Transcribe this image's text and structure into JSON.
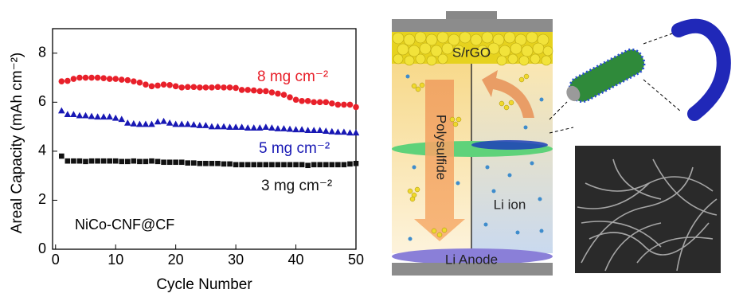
{
  "chart_data": {
    "type": "scatter",
    "x_label": "Cycle Number",
    "y_label": "Areal Capacity (mAh cm⁻²)",
    "annotation": "NiCo-CNF@CF",
    "x": [
      1,
      2,
      3,
      4,
      5,
      6,
      7,
      8,
      9,
      10,
      11,
      12,
      13,
      14,
      15,
      16,
      17,
      18,
      19,
      20,
      21,
      22,
      23,
      24,
      25,
      26,
      27,
      28,
      29,
      30,
      31,
      32,
      33,
      34,
      35,
      36,
      37,
      38,
      39,
      40,
      41,
      42,
      43,
      44,
      45,
      46,
      47,
      48,
      49,
      50
    ],
    "series": [
      {
        "name": "8 mg cm⁻²",
        "color": "#e8202a",
        "marker": "circle",
        "values": [
          6.85,
          6.87,
          6.95,
          7.0,
          7.0,
          7.0,
          7.0,
          6.98,
          6.95,
          6.95,
          6.92,
          6.9,
          6.85,
          6.8,
          6.72,
          6.65,
          6.68,
          6.72,
          6.7,
          6.65,
          6.6,
          6.62,
          6.62,
          6.6,
          6.6,
          6.6,
          6.62,
          6.6,
          6.6,
          6.58,
          6.5,
          6.5,
          6.48,
          6.45,
          6.45,
          6.4,
          6.35,
          6.3,
          6.2,
          6.1,
          6.05,
          6.05,
          6.0,
          6.0,
          6.0,
          5.95,
          5.9,
          5.9,
          5.9,
          5.8
        ]
      },
      {
        "name": "5 mg cm⁻²",
        "color": "#1818b4",
        "marker": "triangle",
        "values": [
          5.65,
          5.5,
          5.5,
          5.45,
          5.45,
          5.42,
          5.4,
          5.4,
          5.4,
          5.35,
          5.3,
          5.15,
          5.12,
          5.1,
          5.1,
          5.1,
          5.2,
          5.22,
          5.15,
          5.1,
          5.1,
          5.1,
          5.08,
          5.05,
          5.05,
          5.0,
          5.0,
          5.0,
          4.98,
          4.98,
          4.98,
          4.95,
          4.95,
          4.95,
          4.98,
          4.95,
          4.92,
          4.92,
          4.9,
          4.88,
          4.88,
          4.85,
          4.85,
          4.85,
          4.82,
          4.8,
          4.78,
          4.78,
          4.75,
          4.75
        ]
      },
      {
        "name": "3 mg cm⁻²",
        "color": "#111111",
        "marker": "square",
        "values": [
          3.8,
          3.6,
          3.6,
          3.6,
          3.58,
          3.6,
          3.6,
          3.6,
          3.6,
          3.6,
          3.58,
          3.58,
          3.6,
          3.58,
          3.58,
          3.6,
          3.58,
          3.55,
          3.55,
          3.55,
          3.55,
          3.52,
          3.52,
          3.5,
          3.5,
          3.5,
          3.5,
          3.48,
          3.48,
          3.45,
          3.45,
          3.45,
          3.45,
          3.45,
          3.45,
          3.45,
          3.45,
          3.45,
          3.45,
          3.45,
          3.45,
          3.42,
          3.45,
          3.45,
          3.45,
          3.45,
          3.45,
          3.45,
          3.48,
          3.5
        ]
      }
    ],
    "xlim": [
      -0.5,
      50
    ],
    "xticks": [
      0,
      10,
      20,
      30,
      40,
      50
    ],
    "ylim": [
      0,
      9
    ],
    "yticks": [
      0,
      2,
      4,
      6,
      8
    ]
  },
  "diagram": {
    "labels": {
      "cathode": "S/rGO",
      "polysulfide": "Polysulfide",
      "ion": "Li ion",
      "anode": "Li Anode"
    }
  }
}
